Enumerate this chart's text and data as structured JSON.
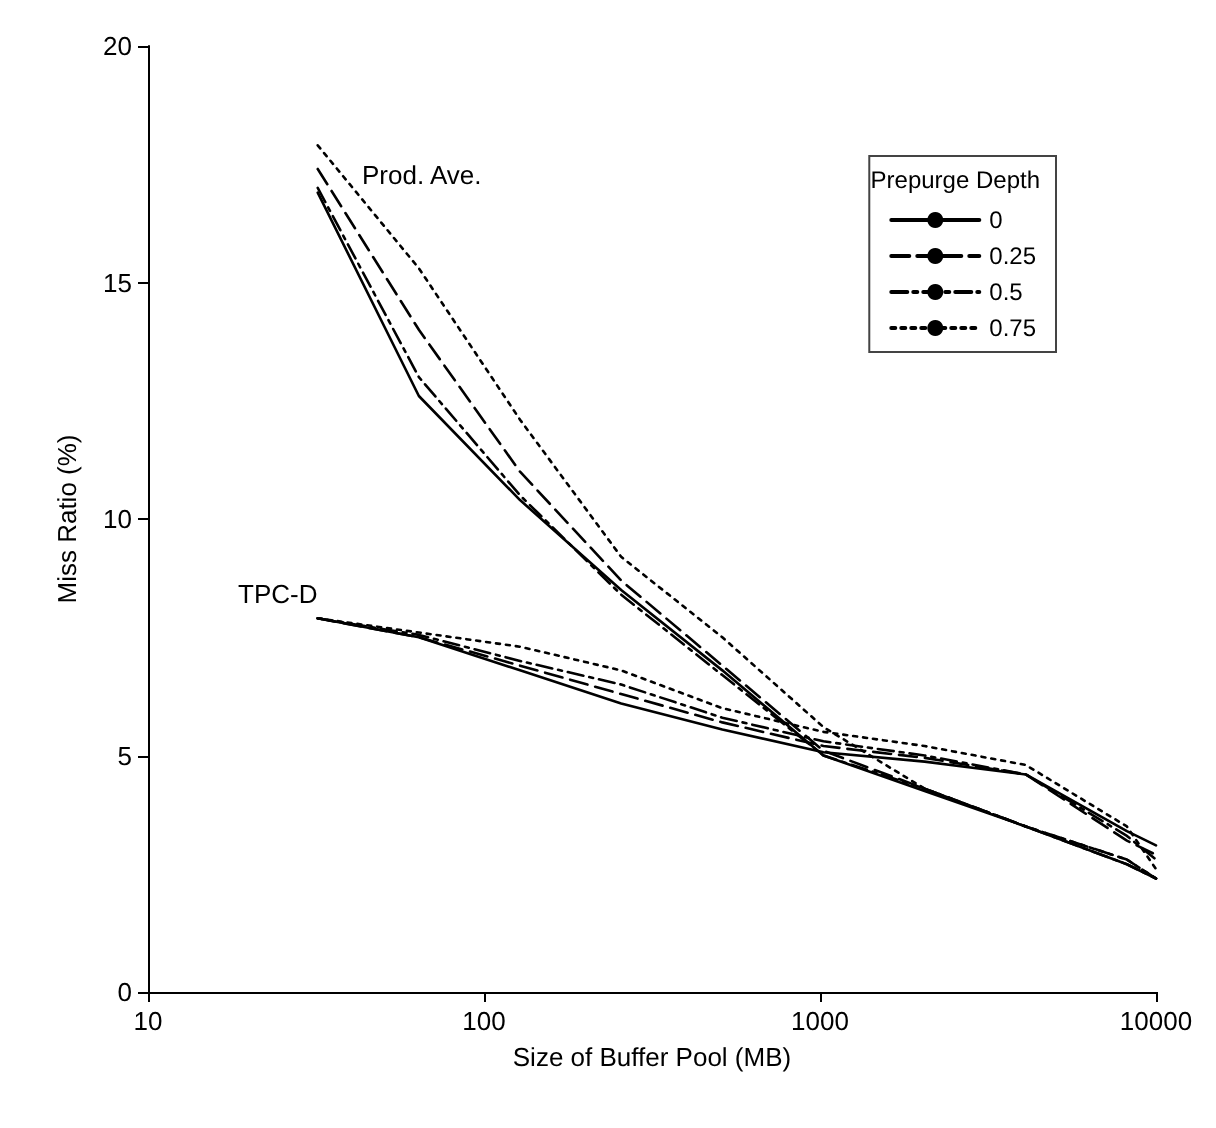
{
  "chart_data": {
    "type": "line",
    "xlabel": "Size of Buffer Pool (MB)",
    "ylabel": "Miss Ratio (%)",
    "legend_title": "Prepurge Depth",
    "legend": "top right",
    "grid": false,
    "log": "x",
    "marker": "none",
    "xlim": [
      10,
      10000
    ],
    "xticks": [
      10,
      100,
      1000,
      10000
    ],
    "ylim": [
      0,
      20
    ],
    "yticks": [
      0,
      5,
      10,
      15,
      20
    ],
    "x": [
      32,
      64,
      128,
      256,
      512,
      1024,
      2048,
      4096,
      8192,
      10000
    ],
    "series": [
      {
        "name": "0",
        "color": "#000000",
        "line_style": "solid",
        "values": [
          16.9,
          12.6,
          10.4,
          8.5,
          6.8,
          5.0,
          4.25,
          3.5,
          2.7,
          2.4
        ]
      },
      {
        "name": "0.25",
        "color": "#000000",
        "line_style": "dashed",
        "values": [
          17.4,
          14.0,
          11.0,
          8.7,
          6.9,
          5.1,
          4.3,
          3.5,
          2.8,
          2.4
        ]
      },
      {
        "name": "0.5",
        "color": "#000000",
        "line_style": "dashdot",
        "values": [
          17.0,
          13.0,
          10.5,
          8.4,
          6.7,
          5.0,
          4.3,
          3.5,
          2.7,
          2.4
        ]
      },
      {
        "name": "0.75",
        "color": "#000000",
        "line_style": "dotted",
        "values": [
          17.9,
          15.3,
          12.1,
          9.2,
          7.5,
          5.6,
          4.3,
          3.5,
          2.8,
          2.4
        ]
      },
      {
        "color": "#000000",
        "line_style": "solid",
        "values": [
          7.9,
          7.5,
          6.8,
          6.1,
          5.55,
          5.07,
          4.87,
          4.6,
          3.4,
          3.1
        ]
      },
      {
        "color": "#000000",
        "line_style": "dashed",
        "values": [
          7.9,
          7.5,
          6.9,
          6.3,
          5.7,
          5.2,
          4.95,
          4.6,
          3.2,
          2.9
        ]
      },
      {
        "color": "#000000",
        "line_style": "dashdot",
        "values": [
          7.9,
          7.55,
          7.0,
          6.5,
          5.8,
          5.3,
          5.0,
          4.6,
          3.3,
          2.8
        ]
      },
      {
        "color": "#000000",
        "line_style": "dotted",
        "values": [
          7.9,
          7.6,
          7.3,
          6.8,
          6.0,
          5.5,
          5.2,
          4.8,
          3.5,
          2.6
        ]
      }
    ],
    "annotations": [
      "Prod. Ave.",
      "TPC-D"
    ]
  }
}
